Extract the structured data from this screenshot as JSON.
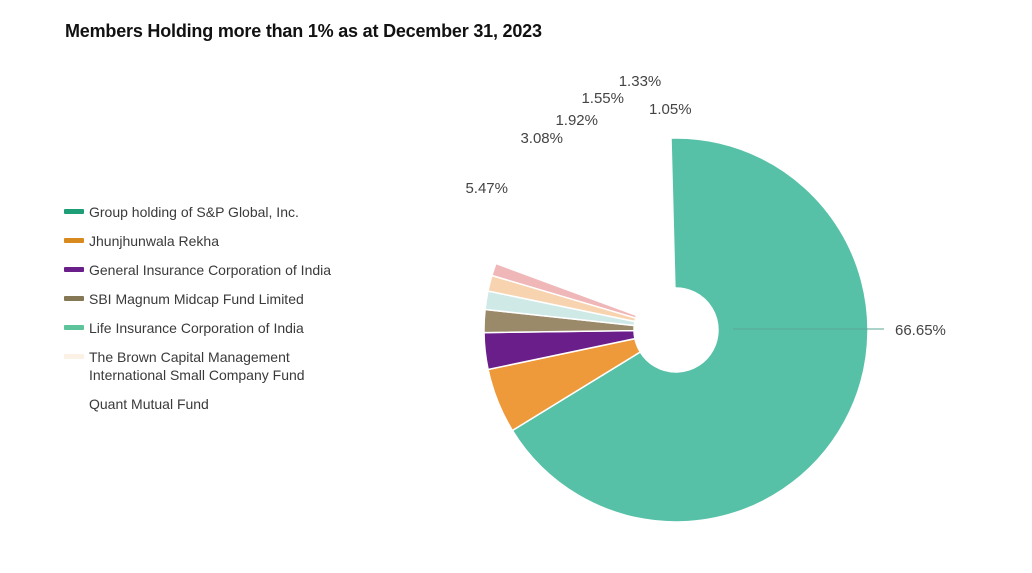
{
  "title": "Members Holding more than 1% as at December 31, 2023",
  "chart_data": {
    "type": "pie",
    "title": "Members Holding more than 1% as at December 31, 2023",
    "legend_position": "left",
    "donut": true,
    "slices": [
      {
        "name": "Group holding of S&P Global, Inc.",
        "value": 66.65,
        "label": "66.65%",
        "color": "#57C1A8",
        "legend_color": "#1E9E76"
      },
      {
        "name": "Jhunjhunwala Rekha",
        "value": 5.47,
        "label": "5.47%",
        "color": "#EE9A3A",
        "legend_color": "#D98A1E"
      },
      {
        "name": "General Insurance Corporation of India",
        "value": 3.08,
        "label": "3.08%",
        "color": "#6A1E8A",
        "legend_color": "#6A1E8A"
      },
      {
        "name": "SBI Magnum Midcap Fund Limited",
        "value": 1.92,
        "label": "1.92%",
        "color": "#9A8A6A",
        "legend_color": "#857855"
      },
      {
        "name": "Life Insurance Corporation of India",
        "value": 1.55,
        "label": "1.55%",
        "color": "#CFEAE6",
        "legend_color": "#5DC39A"
      },
      {
        "name": "The Brown Capital Management\nInternational Small Company Fund",
        "value": 1.33,
        "label": "1.33%",
        "color": "#F8D3B0",
        "legend_color": "#FBF1E4"
      },
      {
        "name": "Quant Mutual Fund",
        "value": 1.05,
        "label": "1.05%",
        "color": "#F0B7B9",
        "legend_color": "#FFFFFF"
      }
    ]
  }
}
